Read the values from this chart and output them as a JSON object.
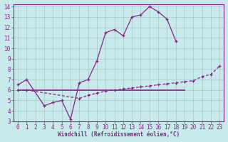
{
  "line1_x": [
    0,
    1,
    3,
    4,
    5,
    6,
    7,
    8,
    9,
    10,
    11,
    12,
    13,
    14,
    15,
    16,
    17,
    18
  ],
  "line1_y": [
    6.5,
    7.0,
    4.5,
    4.8,
    5.0,
    3.2,
    6.7,
    7.0,
    8.8,
    11.5,
    11.8,
    11.2,
    13.0,
    13.2,
    14.0,
    13.5,
    12.8,
    10.7
  ],
  "line2_x": [
    0,
    1,
    7,
    8,
    9,
    10,
    11,
    12,
    13,
    14,
    15,
    16,
    17,
    18,
    19,
    20,
    21,
    22,
    23
  ],
  "line2_y": [
    6.0,
    6.0,
    5.2,
    5.5,
    5.7,
    5.9,
    6.0,
    6.1,
    6.2,
    6.3,
    6.4,
    6.5,
    6.6,
    6.7,
    6.8,
    6.9,
    7.3,
    7.5,
    8.3
  ],
  "hline_x": [
    0,
    19
  ],
  "hline_y": [
    6.0,
    6.0
  ],
  "line_color": "#882288",
  "bg_color": "#c8eaea",
  "grid_color": "#aacccc",
  "xlabel": "Windchill (Refroidissement éolien,°C)",
  "xlim": [
    -0.5,
    23.5
  ],
  "ylim": [
    3,
    14.2
  ],
  "yticks": [
    3,
    4,
    5,
    6,
    7,
    8,
    9,
    10,
    11,
    12,
    13,
    14
  ],
  "xticks": [
    0,
    1,
    2,
    3,
    4,
    5,
    6,
    7,
    8,
    9,
    10,
    11,
    12,
    13,
    14,
    15,
    16,
    17,
    18,
    19,
    20,
    21,
    22,
    23
  ]
}
